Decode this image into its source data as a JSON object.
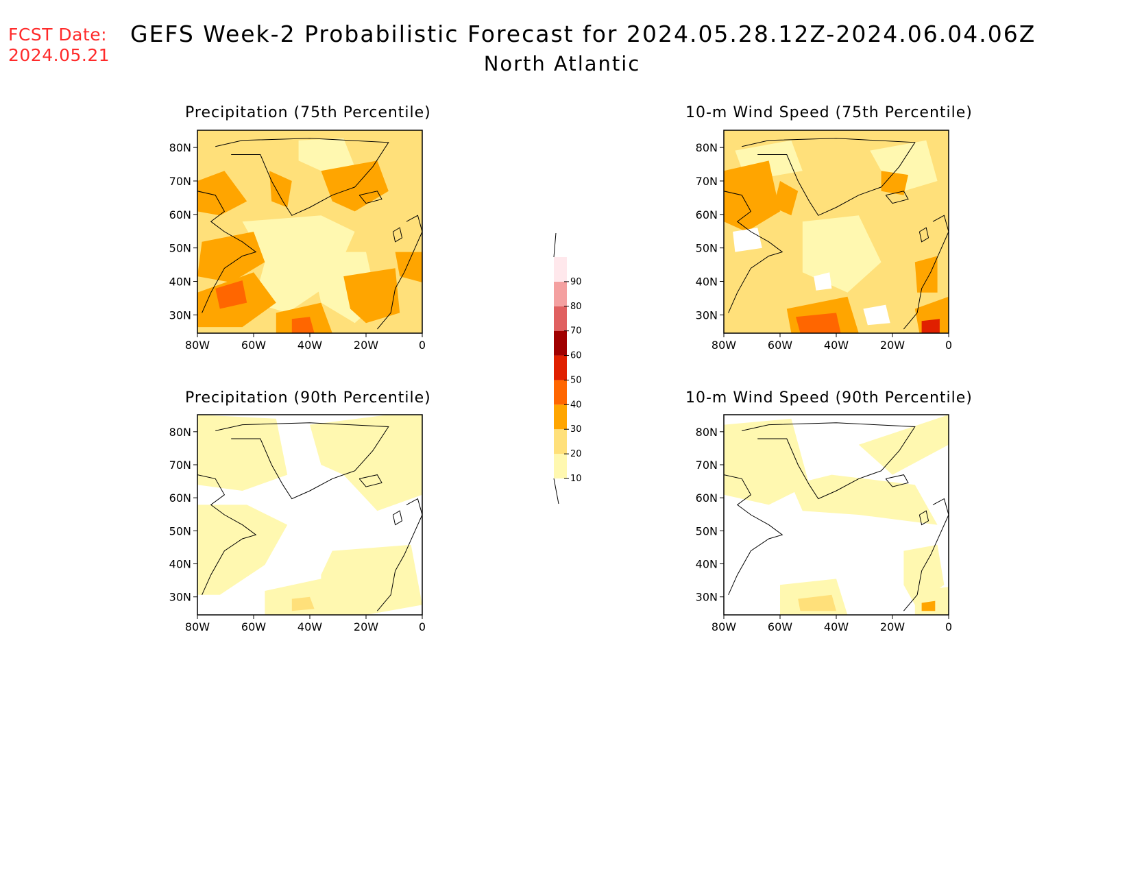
{
  "header": {
    "fcst_label": "FCST Date:",
    "fcst_date": "2024.05.21",
    "title": "GEFS Week-2 Probabilistic Forecast for 2024.05.28.12Z-2024.06.04.06Z",
    "subtitle": "North Atlantic"
  },
  "panels": [
    {
      "title": "Precipitation (75th Percentile)",
      "lat_ticks": [
        "80N",
        "70N",
        "60N",
        "50N",
        "40N",
        "30N"
      ],
      "lon_ticks": [
        "80W",
        "60W",
        "40W",
        "20W",
        "0"
      ]
    },
    {
      "title": "10-m Wind Speed (75th Percentile)",
      "lat_ticks": [
        "80N",
        "70N",
        "60N",
        "50N",
        "40N",
        "30N"
      ],
      "lon_ticks": [
        "80W",
        "60W",
        "40W",
        "20W",
        "0"
      ]
    },
    {
      "title": "Precipitation (90th Percentile)",
      "lat_ticks": [
        "80N",
        "70N",
        "60N",
        "50N",
        "40N",
        "30N"
      ],
      "lon_ticks": [
        "80W",
        "60W",
        "40W",
        "20W",
        "0"
      ]
    },
    {
      "title": "10-m Wind Speed (90th Percentile)",
      "lat_ticks": [
        "80N",
        "70N",
        "60N",
        "50N",
        "40N",
        "30N"
      ],
      "lon_ticks": [
        "80W",
        "60W",
        "40W",
        "20W",
        "0"
      ]
    }
  ],
  "colorbar": {
    "labels": [
      "10",
      "20",
      "30",
      "40",
      "50",
      "60",
      "70",
      "80",
      "90"
    ],
    "colors": [
      "#fff8b0",
      "#ffe07a",
      "#ffa500",
      "#ff6600",
      "#e02000",
      "#a00000",
      "#e06060",
      "#f4a0a0",
      "#ffe8ec"
    ]
  },
  "map_colors": {
    "none": "#ffffff",
    "c10": "#fff8b0",
    "c20": "#ffe07a",
    "c30": "#ffa500",
    "c40": "#ff6600",
    "c50": "#e02000"
  }
}
